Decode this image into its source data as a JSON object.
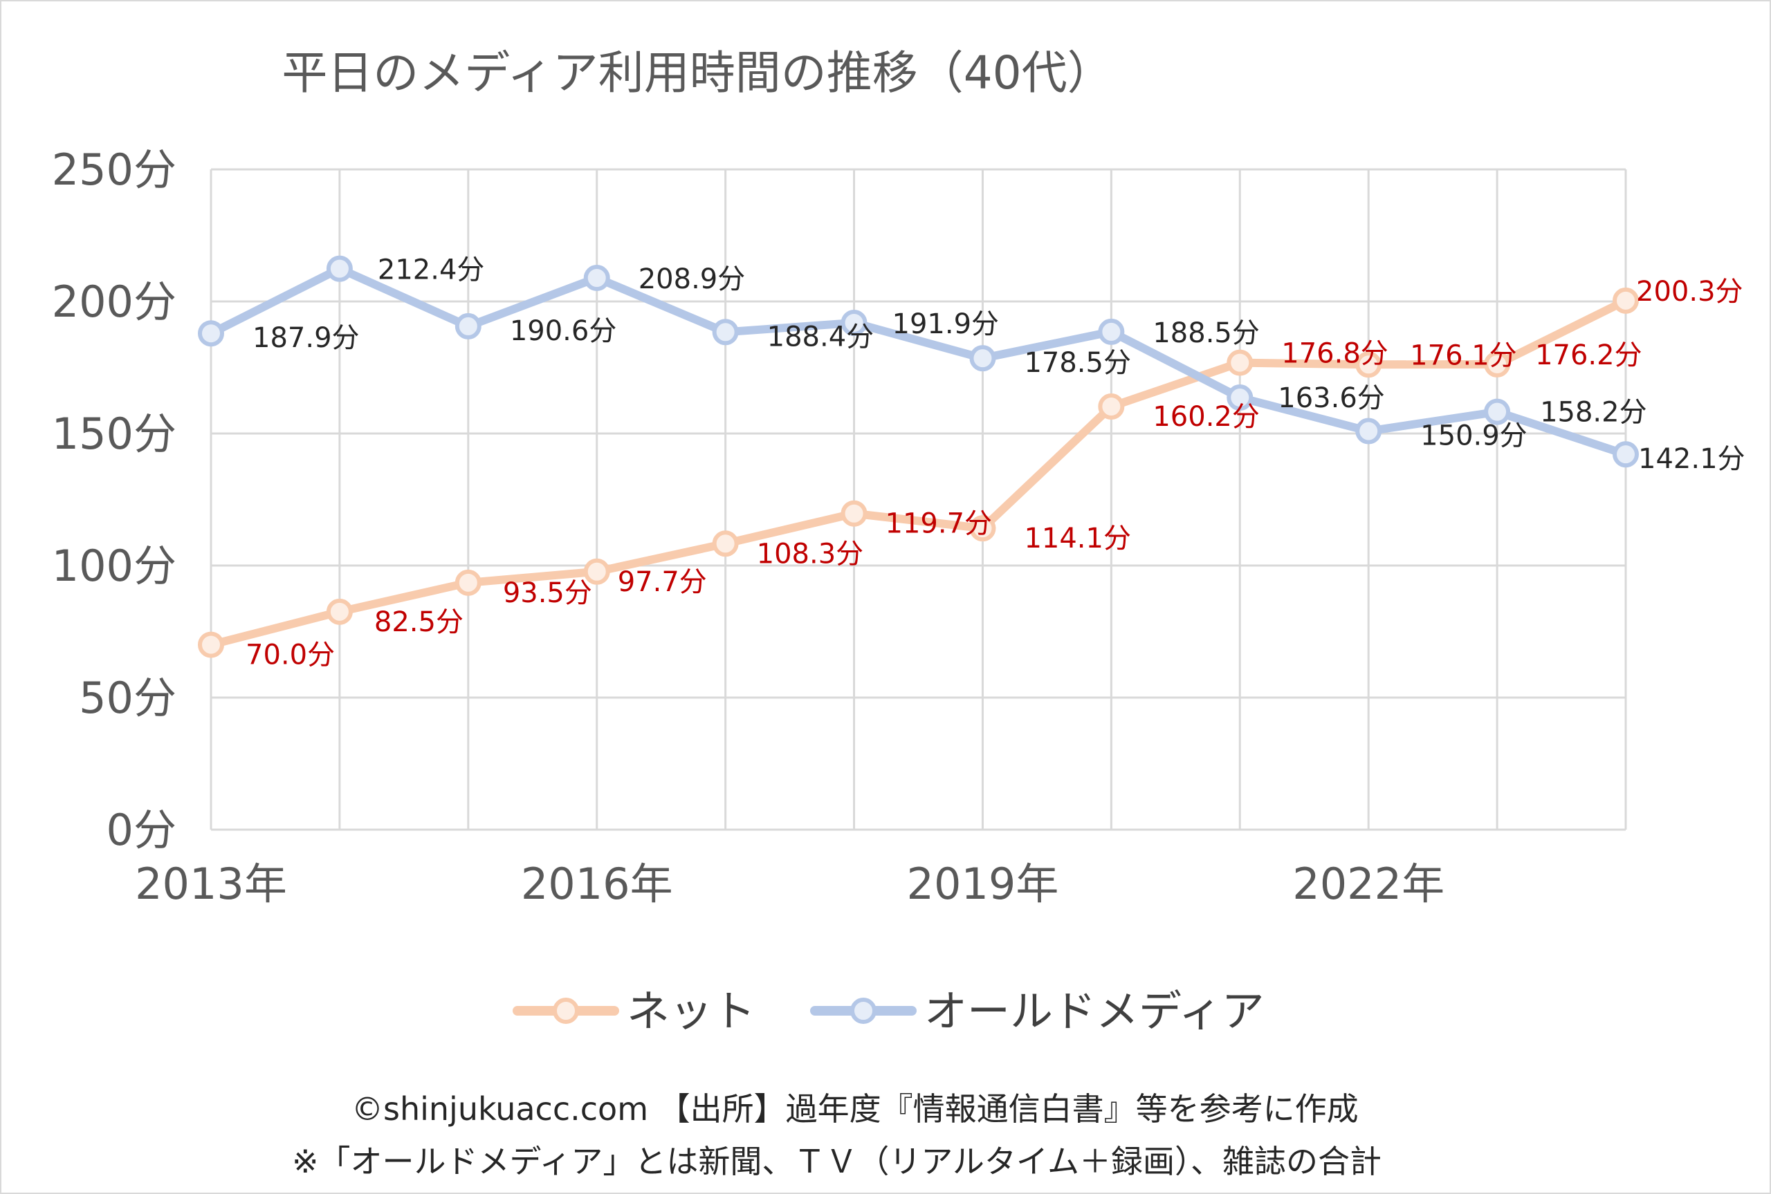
{
  "chart_data": {
    "type": "line",
    "title": "平日のメディア利用時間の推移（40代）",
    "x": [
      2013,
      2014,
      2015,
      2016,
      2017,
      2018,
      2019,
      2020,
      2021,
      2022,
      2023,
      2024
    ],
    "x_tick_labels": [
      "2013年",
      "2016年",
      "2019年",
      "2022年"
    ],
    "x_tick_positions": [
      2013,
      2016,
      2019,
      2022
    ],
    "ylim": [
      0,
      250
    ],
    "y_ticks": [
      0,
      50,
      100,
      150,
      200,
      250
    ],
    "y_tick_labels": [
      "0分",
      "50分",
      "100分",
      "150分",
      "200分",
      "250分"
    ],
    "grid": true,
    "legend_position": "bottom",
    "series": [
      {
        "name": "ネット",
        "color": "#f8cbad",
        "label_color": "#c00000",
        "values": [
          70.0,
          82.5,
          93.5,
          97.7,
          108.3,
          119.7,
          114.1,
          160.2,
          176.8,
          176.1,
          176.2,
          200.3
        ],
        "labels": [
          "70.0分",
          "82.5分",
          "93.5分",
          "97.7分",
          "108.3分",
          "119.7分",
          "114.1分",
          "160.2分",
          "176.8分",
          "176.1分",
          "176.2分",
          "200.3分"
        ]
      },
      {
        "name": "オールドメディア",
        "color": "#b4c7e7",
        "label_color": "#262626",
        "values": [
          187.9,
          212.4,
          190.6,
          208.9,
          188.4,
          191.9,
          178.5,
          188.5,
          163.6,
          150.9,
          158.2,
          142.1
        ],
        "labels": [
          "187.9分",
          "212.4分",
          "190.6分",
          "208.9分",
          "188.4分",
          "191.9分",
          "178.5分",
          "188.5分",
          "163.6分",
          "150.9分",
          "158.2分",
          "142.1分"
        ]
      }
    ]
  },
  "footer": {
    "source": "©shinjukuacc.com 【出所】過年度『情報通信白書』等を参考に作成",
    "note": "※「オールドメディア」とは新聞、ＴＶ（リアルタイム＋録画）、雑誌の合計"
  },
  "colors": {
    "grid": "#d9d9d9",
    "axis_text": "#595959",
    "border": "#d9d9d9"
  }
}
